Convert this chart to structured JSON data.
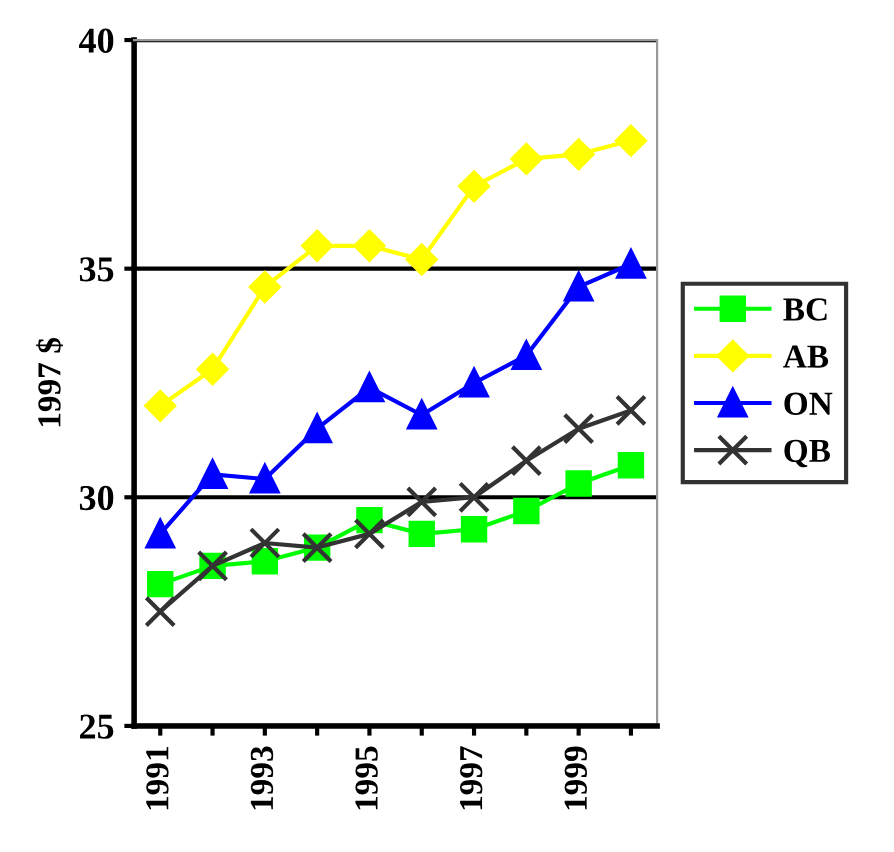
{
  "chart_data": {
    "type": "line",
    "ylabel": "1997 $",
    "categories": [
      "1991",
      null,
      "1993",
      null,
      "1995",
      null,
      "1997",
      null,
      "1999",
      null
    ],
    "series": [
      {
        "name": "BC",
        "color": "#00ff00",
        "marker": "square",
        "values": [
          28.1,
          28.5,
          28.6,
          28.9,
          29.5,
          29.2,
          29.3,
          29.7,
          30.3,
          30.7
        ]
      },
      {
        "name": "AB",
        "color": "#ffff00",
        "marker": "diamond",
        "values": [
          32.0,
          32.8,
          34.6,
          35.5,
          35.5,
          35.2,
          36.8,
          37.4,
          37.5,
          37.8
        ]
      },
      {
        "name": "ON",
        "color": "#0000ff",
        "marker": "triangle",
        "values": [
          29.2,
          30.5,
          30.4,
          31.5,
          32.4,
          31.8,
          32.5,
          33.1,
          34.6,
          35.1
        ]
      },
      {
        "name": "QB",
        "color": "#333333",
        "marker": "cross",
        "values": [
          27.5,
          28.5,
          29.0,
          28.9,
          29.2,
          29.9,
          30.0,
          30.8,
          31.5,
          31.9
        ]
      }
    ],
    "ylim": [
      25,
      40
    ],
    "yticks": [
      25,
      30,
      35,
      40
    ],
    "grid": "y",
    "legend": "right"
  }
}
